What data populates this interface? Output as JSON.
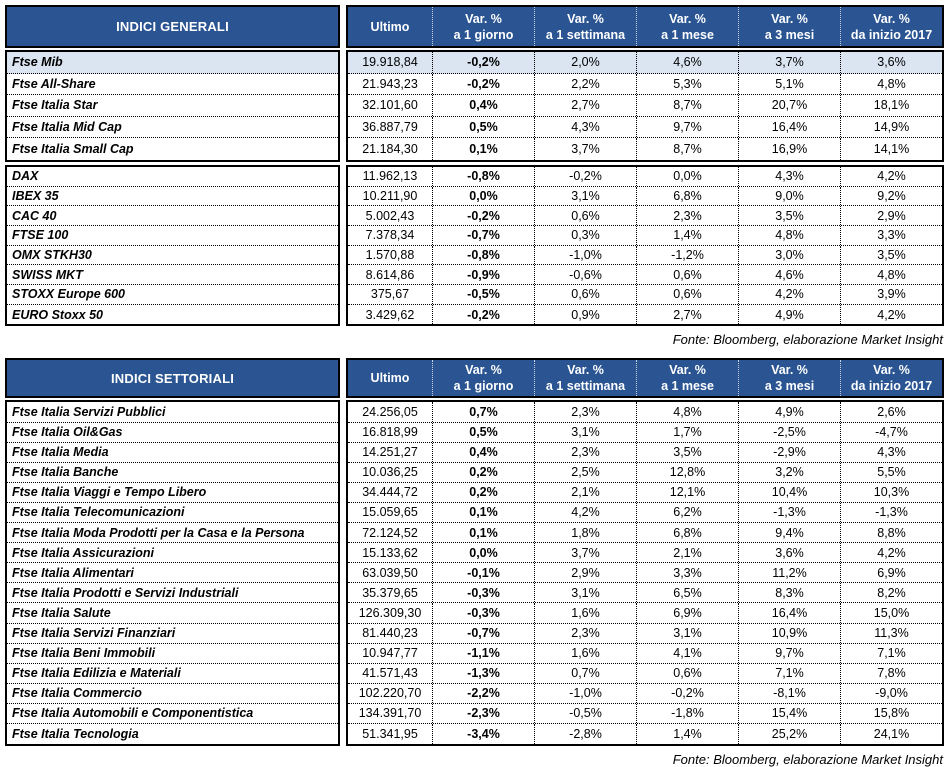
{
  "colors": {
    "header_bg": "#2a5492",
    "header_text": "#ffffff",
    "highlight_row_bg": "#dbe5f1",
    "border": "#000000"
  },
  "tables": [
    {
      "title": "INDICI GENERALI",
      "fonte": "Fonte: Bloomberg, elaborazione Market Insight",
      "col_headers": [
        [
          "Ultimo"
        ],
        [
          "Var. %",
          "a 1 giorno"
        ],
        [
          "Var. %",
          "a 1 settimana"
        ],
        [
          "Var. %",
          "a 1 mese"
        ],
        [
          "Var. %",
          "a 3 mesi"
        ],
        [
          "Var. %",
          "da inizio 2017"
        ]
      ],
      "groups": [
        {
          "rows": [
            {
              "name": "Ftse Mib",
              "ultimo": "19.918,84",
              "vars": [
                "-0,2%",
                "2,0%",
                "4,6%",
                "3,7%",
                "3,6%"
              ],
              "highlight": true
            },
            {
              "name": "Ftse All-Share",
              "ultimo": "21.943,23",
              "vars": [
                "-0,2%",
                "2,2%",
                "5,3%",
                "5,1%",
                "4,8%"
              ]
            },
            {
              "name": "Ftse Italia Star",
              "ultimo": "32.101,60",
              "vars": [
                "0,4%",
                "2,7%",
                "8,7%",
                "20,7%",
                "18,1%"
              ]
            },
            {
              "name": "Ftse Italia Mid Cap",
              "ultimo": "36.887,79",
              "vars": [
                "0,5%",
                "4,3%",
                "9,7%",
                "16,4%",
                "14,9%"
              ]
            },
            {
              "name": "Ftse Italia Small Cap",
              "ultimo": "21.184,30",
              "vars": [
                "0,1%",
                "3,7%",
                "8,7%",
                "16,9%",
                "14,1%"
              ]
            }
          ]
        },
        {
          "rows": [
            {
              "name": "DAX",
              "ultimo": "11.962,13",
              "vars": [
                "-0,8%",
                "-0,2%",
                "0,0%",
                "4,3%",
                "4,2%"
              ]
            },
            {
              "name": "IBEX 35",
              "ultimo": "10.211,90",
              "vars": [
                "0,0%",
                "3,1%",
                "6,8%",
                "9,0%",
                "9,2%"
              ]
            },
            {
              "name": "CAC 40",
              "ultimo": "5.002,43",
              "vars": [
                "-0,2%",
                "0,6%",
                "2,3%",
                "3,5%",
                "2,9%"
              ]
            },
            {
              "name": "FTSE 100",
              "ultimo": "7.378,34",
              "vars": [
                "-0,7%",
                "0,3%",
                "1,4%",
                "4,8%",
                "3,3%"
              ]
            },
            {
              "name": "OMX STKH30",
              "ultimo": "1.570,88",
              "vars": [
                "-0,8%",
                "-1,0%",
                "-1,2%",
                "3,0%",
                "3,5%"
              ]
            },
            {
              "name": "SWISS MKT",
              "ultimo": "8.614,86",
              "vars": [
                "-0,9%",
                "-0,6%",
                "0,6%",
                "4,6%",
                "4,8%"
              ]
            },
            {
              "name": "STOXX Europe 600",
              "ultimo": "375,67",
              "vars": [
                "-0,5%",
                "0,6%",
                "0,6%",
                "4,2%",
                "3,9%"
              ]
            },
            {
              "name": "EURO Stoxx 50",
              "ultimo": "3.429,62",
              "vars": [
                "-0,2%",
                "0,9%",
                "2,7%",
                "4,9%",
                "4,2%"
              ]
            }
          ]
        }
      ]
    },
    {
      "title": "INDICI SETTORIALI",
      "fonte": "Fonte: Bloomberg, elaborazione Market Insight",
      "col_headers": [
        [
          "Ultimo"
        ],
        [
          "Var. %",
          "a 1 giorno"
        ],
        [
          "Var. %",
          "a 1 settimana"
        ],
        [
          "Var. %",
          "a 1 mese"
        ],
        [
          "Var. %",
          "a 3 mesi"
        ],
        [
          "Var. %",
          "da inizio 2017"
        ]
      ],
      "groups": [
        {
          "rows": [
            {
              "name": "Ftse Italia Servizi Pubblici",
              "ultimo": "24.256,05",
              "vars": [
                "0,7%",
                "2,3%",
                "4,8%",
                "4,9%",
                "2,6%"
              ]
            },
            {
              "name": "Ftse Italia Oil&Gas",
              "ultimo": "16.818,99",
              "vars": [
                "0,5%",
                "3,1%",
                "1,7%",
                "-2,5%",
                "-4,7%"
              ]
            },
            {
              "name": "Ftse Italia Media",
              "ultimo": "14.251,27",
              "vars": [
                "0,4%",
                "2,3%",
                "3,5%",
                "-2,9%",
                "4,3%"
              ]
            },
            {
              "name": "Ftse Italia Banche",
              "ultimo": "10.036,25",
              "vars": [
                "0,2%",
                "2,5%",
                "12,8%",
                "3,2%",
                "5,5%"
              ]
            },
            {
              "name": "Ftse Italia Viaggi e Tempo Libero",
              "ultimo": "34.444,72",
              "vars": [
                "0,2%",
                "2,1%",
                "12,1%",
                "10,4%",
                "10,3%"
              ]
            },
            {
              "name": "Ftse Italia Telecomunicazioni",
              "ultimo": "15.059,65",
              "vars": [
                "0,1%",
                "4,2%",
                "6,2%",
                "-1,3%",
                "-1,3%"
              ]
            },
            {
              "name": "Ftse Italia Moda Prodotti per la Casa e la Persona",
              "ultimo": "72.124,52",
              "vars": [
                "0,1%",
                "1,8%",
                "6,8%",
                "9,4%",
                "8,8%"
              ]
            },
            {
              "name": "Ftse Italia Assicurazioni",
              "ultimo": "15.133,62",
              "vars": [
                "0,0%",
                "3,7%",
                "2,1%",
                "3,6%",
                "4,2%"
              ]
            },
            {
              "name": "Ftse Italia Alimentari",
              "ultimo": "63.039,50",
              "vars": [
                "-0,1%",
                "2,9%",
                "3,3%",
                "11,2%",
                "6,9%"
              ]
            },
            {
              "name": "Ftse Italia Prodotti e Servizi Industriali",
              "ultimo": "35.379,65",
              "vars": [
                "-0,3%",
                "3,1%",
                "6,5%",
                "8,3%",
                "8,2%"
              ]
            },
            {
              "name": "Ftse Italia Salute",
              "ultimo": "126.309,30",
              "vars": [
                "-0,3%",
                "1,6%",
                "6,9%",
                "16,4%",
                "15,0%"
              ]
            },
            {
              "name": "Ftse Italia Servizi Finanziari",
              "ultimo": "81.440,23",
              "vars": [
                "-0,7%",
                "2,3%",
                "3,1%",
                "10,9%",
                "11,3%"
              ]
            },
            {
              "name": "Ftse Italia Beni Immobili",
              "ultimo": "10.947,77",
              "vars": [
                "-1,1%",
                "1,6%",
                "4,1%",
                "9,7%",
                "7,1%"
              ]
            },
            {
              "name": "Ftse Italia Edilizia e Materiali",
              "ultimo": "41.571,43",
              "vars": [
                "-1,3%",
                "0,7%",
                "0,6%",
                "7,1%",
                "7,8%"
              ]
            },
            {
              "name": "Ftse Italia Commercio",
              "ultimo": "102.220,70",
              "vars": [
                "-2,2%",
                "-1,0%",
                "-0,2%",
                "-8,1%",
                "-9,0%"
              ]
            },
            {
              "name": "Ftse Italia Automobili e Componentistica",
              "ultimo": "134.391,70",
              "vars": [
                "-2,3%",
                "-0,5%",
                "-1,8%",
                "15,4%",
                "15,8%"
              ]
            },
            {
              "name": "Ftse Italia Tecnologia",
              "ultimo": "51.341,95",
              "vars": [
                "-3,4%",
                "-2,8%",
                "1,4%",
                "25,2%",
                "24,1%"
              ]
            }
          ]
        }
      ]
    }
  ]
}
